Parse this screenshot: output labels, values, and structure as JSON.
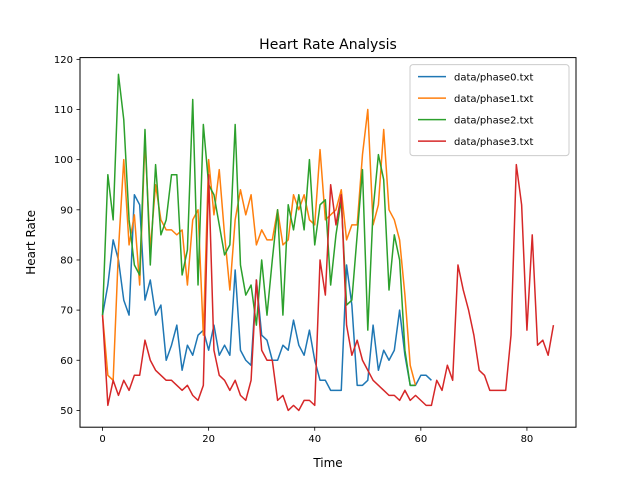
{
  "chart_data": {
    "type": "line",
    "title": "Heart Rate Analysis",
    "xlabel": "Time",
    "ylabel": "Heart Rate",
    "xlim": [
      -4.25,
      89.25
    ],
    "ylim": [
      46.65,
      120.35
    ],
    "xticks": [
      0,
      20,
      40,
      60,
      80
    ],
    "yticks": [
      50,
      60,
      70,
      80,
      90,
      100,
      110,
      120
    ],
    "grid": false,
    "legend_position": "top-right",
    "series": [
      {
        "name": "data/phase0.txt",
        "color": "#1f77b4",
        "y": [
          69,
          75,
          84,
          80,
          72,
          69,
          93,
          91,
          72,
          76,
          69,
          71,
          60,
          63,
          67,
          58,
          63,
          61,
          65,
          66,
          62,
          67,
          61,
          63,
          61,
          78,
          62,
          60,
          59,
          76,
          65,
          64,
          60,
          60,
          63,
          62,
          68,
          63,
          61,
          66,
          60,
          56,
          56,
          54,
          54,
          54,
          79,
          71,
          55,
          55,
          56,
          67,
          58,
          62,
          60,
          62,
          70,
          61,
          55,
          55,
          57,
          57,
          56
        ]
      },
      {
        "name": "data/phase1.txt",
        "color": "#ff7f0e",
        "y": [
          69,
          57,
          56,
          82,
          100,
          83,
          89,
          75,
          104,
          82,
          95,
          88,
          86,
          86,
          85,
          86,
          75,
          88,
          90,
          65,
          100,
          89,
          98,
          85,
          74,
          88,
          94,
          89,
          93,
          83,
          86,
          84,
          84,
          90,
          83,
          84,
          93,
          90,
          93,
          88,
          87,
          102,
          88,
          89,
          90,
          94,
          84,
          87,
          87,
          101,
          110,
          87,
          91,
          106,
          90,
          88,
          84,
          73,
          59,
          55
        ]
      },
      {
        "name": "data/phase2.txt",
        "color": "#2ca02c",
        "y": [
          69,
          97,
          88,
          117,
          108,
          88,
          79,
          77,
          106,
          79,
          99,
          85,
          88,
          97,
          97,
          77,
          82,
          112,
          75,
          107,
          95,
          93,
          87,
          81,
          83,
          107,
          79,
          73,
          75,
          67,
          80,
          69,
          80,
          90,
          69,
          91,
          86,
          93,
          86,
          100,
          83,
          91,
          92,
          75,
          85,
          92,
          71,
          72,
          85,
          98,
          66,
          90,
          101,
          96,
          74,
          85,
          80,
          62,
          55,
          55
        ]
      },
      {
        "name": "data/phase3.txt",
        "color": "#d62728",
        "y": [
          69,
          51,
          56,
          53,
          56,
          54,
          57,
          57,
          64,
          60,
          58,
          57,
          56,
          56,
          55,
          54,
          55,
          53,
          52,
          55,
          97,
          62,
          57,
          56,
          54,
          56,
          53,
          52,
          56,
          76,
          62,
          60,
          60,
          52,
          53,
          50,
          51,
          50,
          52,
          52,
          51,
          80,
          73,
          95,
          87,
          93,
          67,
          61,
          64,
          60,
          58,
          56,
          55,
          54,
          53,
          53,
          52,
          54,
          52,
          53,
          52,
          51,
          51,
          56,
          54,
          59,
          56,
          79,
          74,
          70,
          65,
          58,
          57,
          54,
          54,
          54,
          54,
          65,
          99,
          91,
          66,
          85,
          63,
          64,
          61,
          67
        ]
      }
    ]
  }
}
